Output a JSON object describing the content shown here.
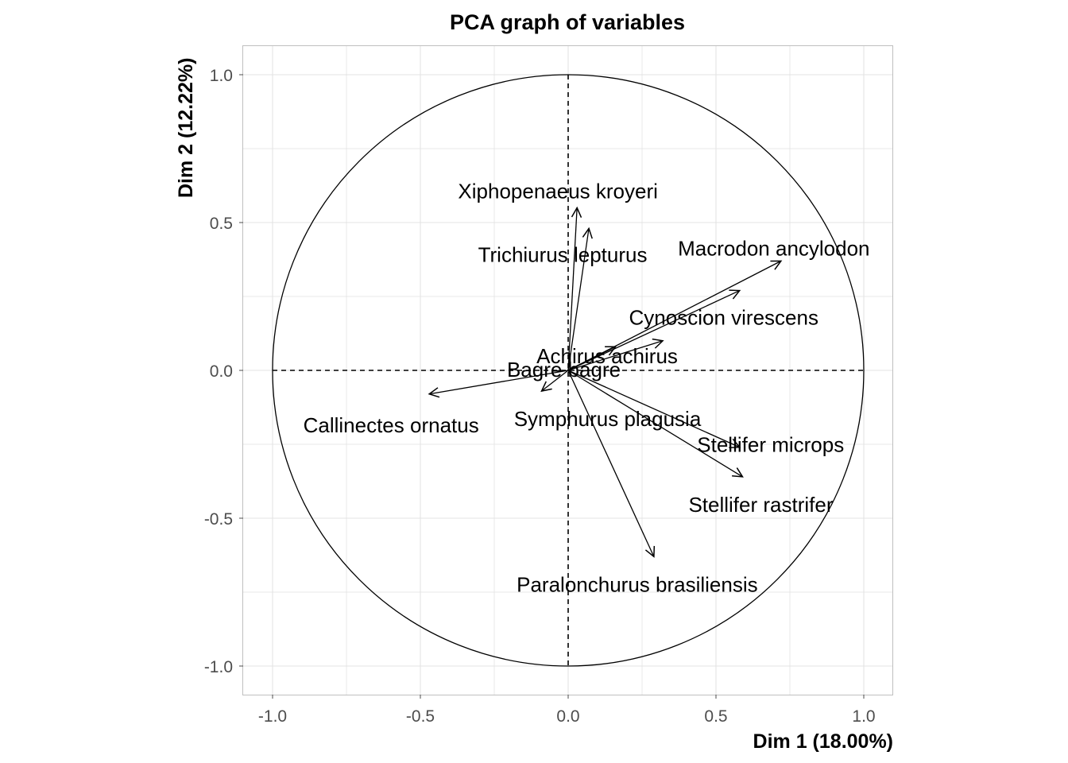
{
  "chart_data": {
    "type": "scatter",
    "title": "PCA graph of variables",
    "xlabel": "Dim 1 (18.00%)",
    "ylabel": "Dim 2 (12.22%)",
    "xlim": [
      -1.1,
      1.1
    ],
    "ylim": [
      -1.1,
      1.1
    ],
    "x_ticks": [
      -1.0,
      -0.5,
      0.0,
      0.5,
      1.0
    ],
    "y_ticks": [
      -1.0,
      -0.5,
      0.0,
      0.5,
      1.0
    ],
    "x_tick_labels": [
      "-1.0",
      "-0.5",
      "0.0",
      "0.5",
      "1.0"
    ],
    "y_tick_labels": [
      "1.0",
      "0.5",
      "0.0",
      "-0.5",
      "-1.0"
    ],
    "grid": true,
    "unit_circle": true,
    "colors": {
      "grid": "#e3e3e3",
      "arrow": "#000000",
      "tick_text": "#4d4d4d",
      "panel_border": "#bfbfbf"
    },
    "variables": [
      {
        "name": "Xiphopenaeus kroyeri",
        "x": 0.03,
        "y": 0.55
      },
      {
        "name": "Trichiurus lepturus",
        "x": 0.07,
        "y": 0.48
      },
      {
        "name": "Macrodon ancylodon",
        "x": 0.72,
        "y": 0.37
      },
      {
        "name": "Cynoscion virescens",
        "x": 0.58,
        "y": 0.27
      },
      {
        "name": "Achirus achirus",
        "x": 0.32,
        "y": 0.1
      },
      {
        "name": "Bagre bagre",
        "x": 0.16,
        "y": 0.08
      },
      {
        "name": "Callinectes ornatus",
        "x": -0.47,
        "y": -0.08
      },
      {
        "name": "Symphurus plagusia",
        "x": -0.09,
        "y": -0.07
      },
      {
        "name": "Stellifer microps",
        "x": 0.58,
        "y": -0.26
      },
      {
        "name": "Stellifer rastrifer",
        "x": 0.59,
        "y": -0.36
      },
      {
        "name": "Paralonchurus brasiliensis",
        "x": 0.29,
        "y": -0.63
      }
    ]
  }
}
